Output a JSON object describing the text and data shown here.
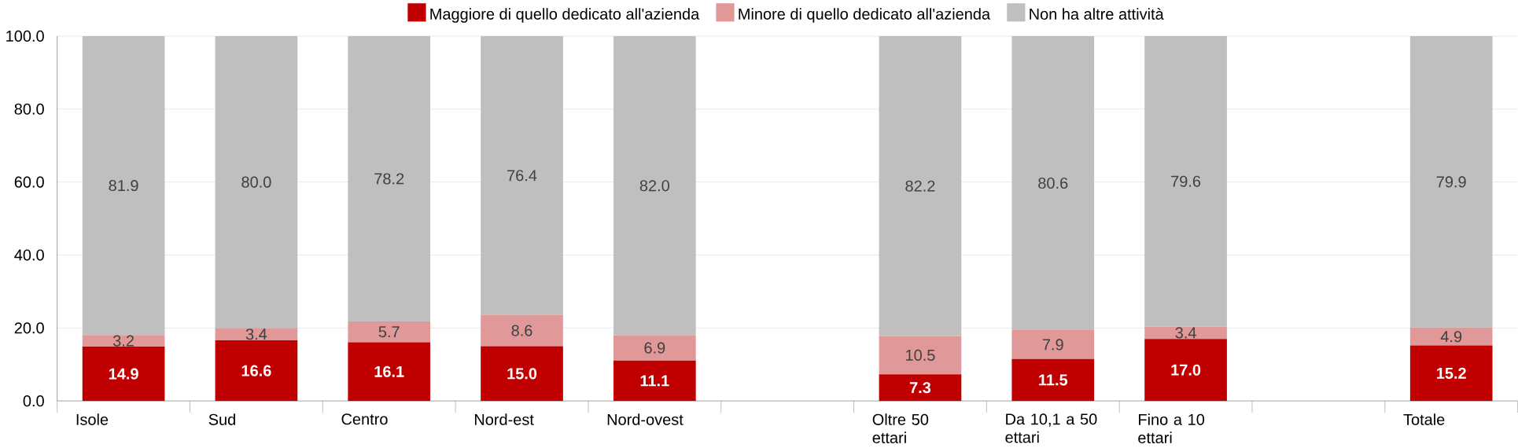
{
  "chart_data": {
    "type": "bar",
    "stacked": true,
    "categories": [
      "Isole",
      "Sud",
      "Centro",
      "Nord-est",
      "Nord-ovest",
      null,
      "Oltre 50 ettari",
      "Da 10,1 a 50 ettari",
      "Fino a 10 ettari",
      null,
      "Totale"
    ],
    "series": [
      {
        "name": "Maggiore di quello dedicato all'azienda",
        "color": "#c00000",
        "values": [
          14.9,
          16.6,
          16.1,
          15.0,
          11.1,
          null,
          7.3,
          11.5,
          17.0,
          null,
          15.2
        ],
        "value_labels": [
          "14.9",
          "16.6",
          "16.1",
          "15.0",
          "11.1",
          null,
          "7.3",
          "11.5",
          "17.0",
          null,
          "15.2"
        ]
      },
      {
        "name": "Minore di quello dedicato all'azienda",
        "color": "#e09898",
        "values": [
          3.2,
          3.4,
          5.7,
          8.6,
          6.9,
          null,
          10.5,
          7.9,
          3.4,
          null,
          4.9
        ],
        "value_labels": [
          "3.2",
          "3.4",
          "5.7",
          "8.6",
          "6.9",
          null,
          "10.5",
          "7.9",
          "3.4",
          null,
          "4.9"
        ]
      },
      {
        "name": "Non ha altre attività",
        "color": "#bfbfbf",
        "values": [
          81.9,
          80.0,
          78.2,
          76.4,
          82.0,
          null,
          82.2,
          80.6,
          79.6,
          null,
          79.9
        ],
        "value_labels": [
          "81.9",
          "80.0",
          "78.2",
          "76.4",
          "82.0",
          null,
          "82.2",
          "80.6",
          "79.6",
          null,
          "79.9"
        ]
      }
    ],
    "ylim": [
      0,
      100
    ],
    "yticks": [
      {
        "value": 0,
        "label": "0.0"
      },
      {
        "value": 20,
        "label": "20.0"
      },
      {
        "value": 40,
        "label": "40.0"
      },
      {
        "value": 60,
        "label": "60.0"
      },
      {
        "value": 80,
        "label": "80.0"
      },
      {
        "value": 100,
        "label": "100.0"
      }
    ],
    "grid": "y",
    "legend": "top"
  }
}
